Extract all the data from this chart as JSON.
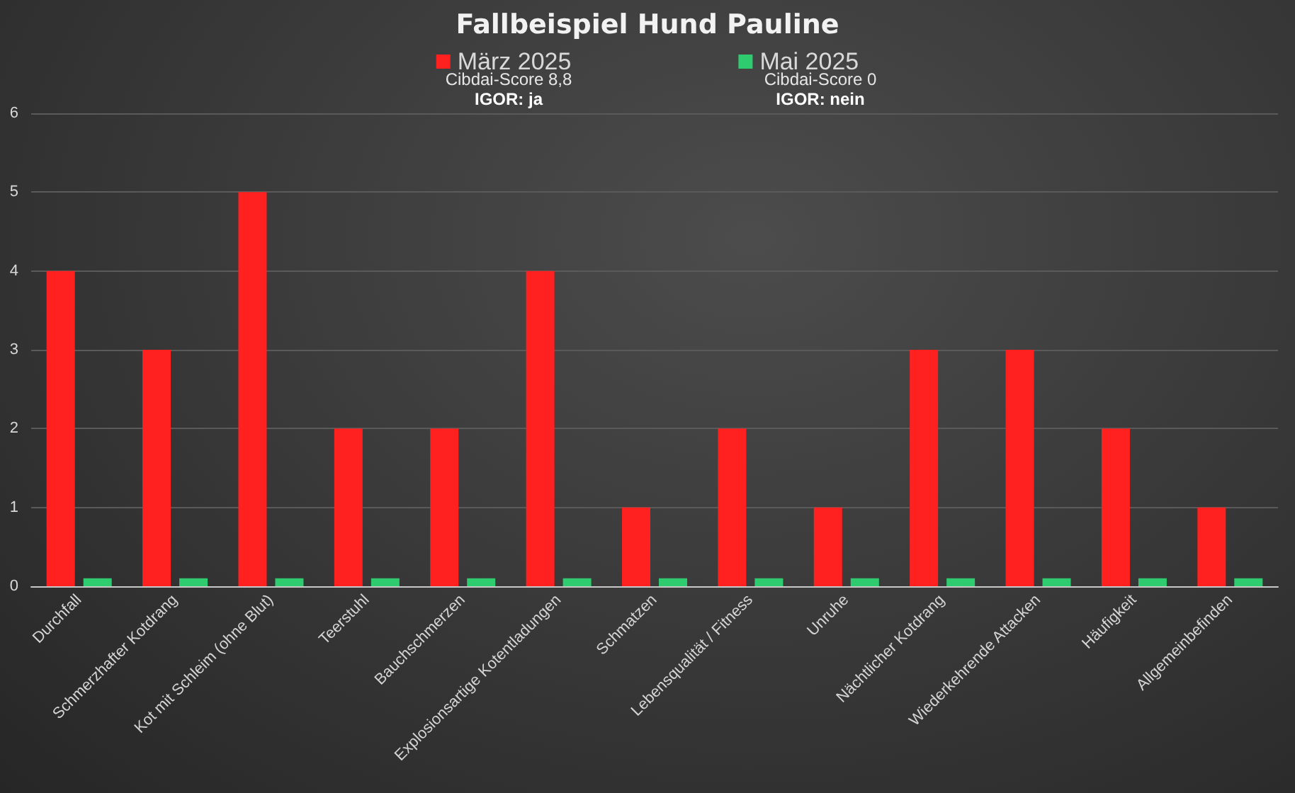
{
  "chart_data": {
    "type": "bar",
    "title": "Fallbeispiel Hund Pauline",
    "categories": [
      "Durchfall",
      "Schmerzhafter Kotdrang",
      "Kot mit Schleim (ohne Blut)",
      "Teerstuhl",
      "Bauchschmerzen",
      "Explosionsartige Kotentladungen",
      "Schmatzen",
      "Lebensqualität / Fitness",
      "Unruhe",
      "Nächtlicher Kotdrang",
      "Wiederkehrende Attacken",
      "Häufigkeit",
      "Allgemeinbefinden"
    ],
    "series": [
      {
        "name": "März 2025",
        "color": "#ff2020",
        "values": [
          4,
          3,
          5,
          2,
          2,
          4,
          1,
          2,
          1,
          3,
          3,
          2,
          1
        ]
      },
      {
        "name": "Mai 2025",
        "color": "#2ecc6e",
        "values": [
          0.1,
          0.1,
          0.1,
          0.1,
          0.1,
          0.1,
          0.1,
          0.1,
          0.1,
          0.1,
          0.1,
          0.1,
          0.1
        ]
      }
    ],
    "ylim": [
      0,
      6
    ],
    "yticks": [
      0,
      1,
      2,
      3,
      4,
      5,
      6
    ],
    "grid": "y",
    "legend": "top",
    "annotations": [
      "Cibdai-Score 8,8",
      "IGOR: ja",
      "Cibdai-Score 0",
      "IGOR: nein"
    ]
  }
}
